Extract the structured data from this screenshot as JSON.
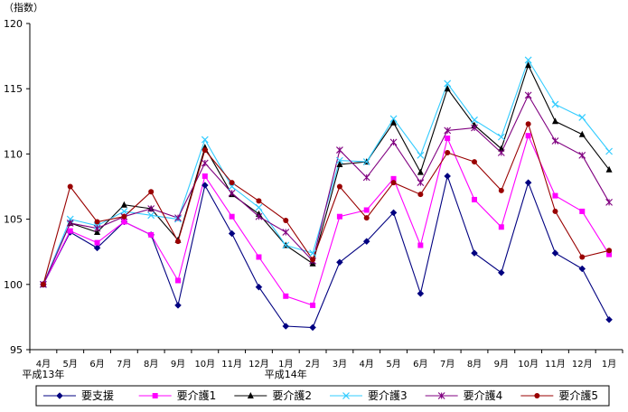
{
  "chart_data": {
    "type": "line",
    "unit_label": "（指数）",
    "ylim": [
      95,
      120
    ],
    "y_ticks": [
      95,
      100,
      105,
      110,
      115,
      120
    ],
    "categories": [
      "4月",
      "5月",
      "6月",
      "7月",
      "8月",
      "9月",
      "10月",
      "11月",
      "12月",
      "1月",
      "2月",
      "3月",
      "4月",
      "5月",
      "6月",
      "7月",
      "8月",
      "9月",
      "10月",
      "11月",
      "12月",
      "1月"
    ],
    "era_labels": [
      {
        "text": "平成13年",
        "at_index": 0
      },
      {
        "text": "平成14年",
        "at_index": 9
      }
    ],
    "series": [
      {
        "name": "要支援",
        "color": "#000080",
        "marker": "diamond",
        "values": [
          100.0,
          104.0,
          102.8,
          104.8,
          103.8,
          98.4,
          107.6,
          103.9,
          99.8,
          96.8,
          96.7,
          101.7,
          103.3,
          105.5,
          99.3,
          108.3,
          102.4,
          100.9,
          107.8,
          102.4,
          101.2,
          97.3
        ]
      },
      {
        "name": "要介護1",
        "color": "#ff00ff",
        "marker": "square",
        "values": [
          100.0,
          104.1,
          103.2,
          104.8,
          103.8,
          100.3,
          108.3,
          105.2,
          102.1,
          99.1,
          98.4,
          105.2,
          105.7,
          108.1,
          103.0,
          111.2,
          106.5,
          104.4,
          111.4,
          106.8,
          105.6,
          102.3
        ]
      },
      {
        "name": "要介護2",
        "color": "#000000",
        "marker": "triangle",
        "values": [
          100.0,
          104.7,
          104.0,
          106.1,
          105.8,
          103.4,
          110.5,
          106.9,
          105.4,
          103.0,
          101.6,
          109.2,
          109.4,
          112.4,
          108.6,
          115.0,
          112.2,
          110.4,
          116.8,
          112.5,
          111.5,
          108.8
        ]
      },
      {
        "name": "要介護3",
        "color": "#33ccff",
        "marker": "x",
        "values": [
          100.0,
          105.0,
          104.5,
          105.6,
          105.3,
          105.0,
          111.1,
          107.5,
          105.9,
          103.0,
          102.4,
          109.5,
          109.4,
          112.7,
          109.9,
          115.4,
          112.6,
          111.3,
          117.2,
          113.8,
          112.8,
          110.2
        ]
      },
      {
        "name": "要介護4",
        "color": "#800080",
        "marker": "star",
        "values": [
          100.0,
          104.7,
          104.3,
          105.2,
          105.8,
          105.1,
          109.3,
          107.0,
          105.2,
          104.0,
          101.8,
          110.3,
          108.2,
          110.9,
          107.8,
          111.8,
          112.0,
          110.1,
          114.5,
          111.0,
          109.9,
          106.3
        ]
      },
      {
        "name": "要介護5",
        "color": "#990000",
        "marker": "circle",
        "values": [
          100.0,
          107.5,
          104.8,
          105.2,
          107.1,
          103.3,
          110.3,
          107.8,
          106.4,
          104.9,
          101.9,
          107.5,
          105.1,
          107.8,
          106.9,
          110.1,
          109.4,
          107.2,
          112.3,
          105.6,
          102.1,
          102.6
        ]
      }
    ]
  }
}
